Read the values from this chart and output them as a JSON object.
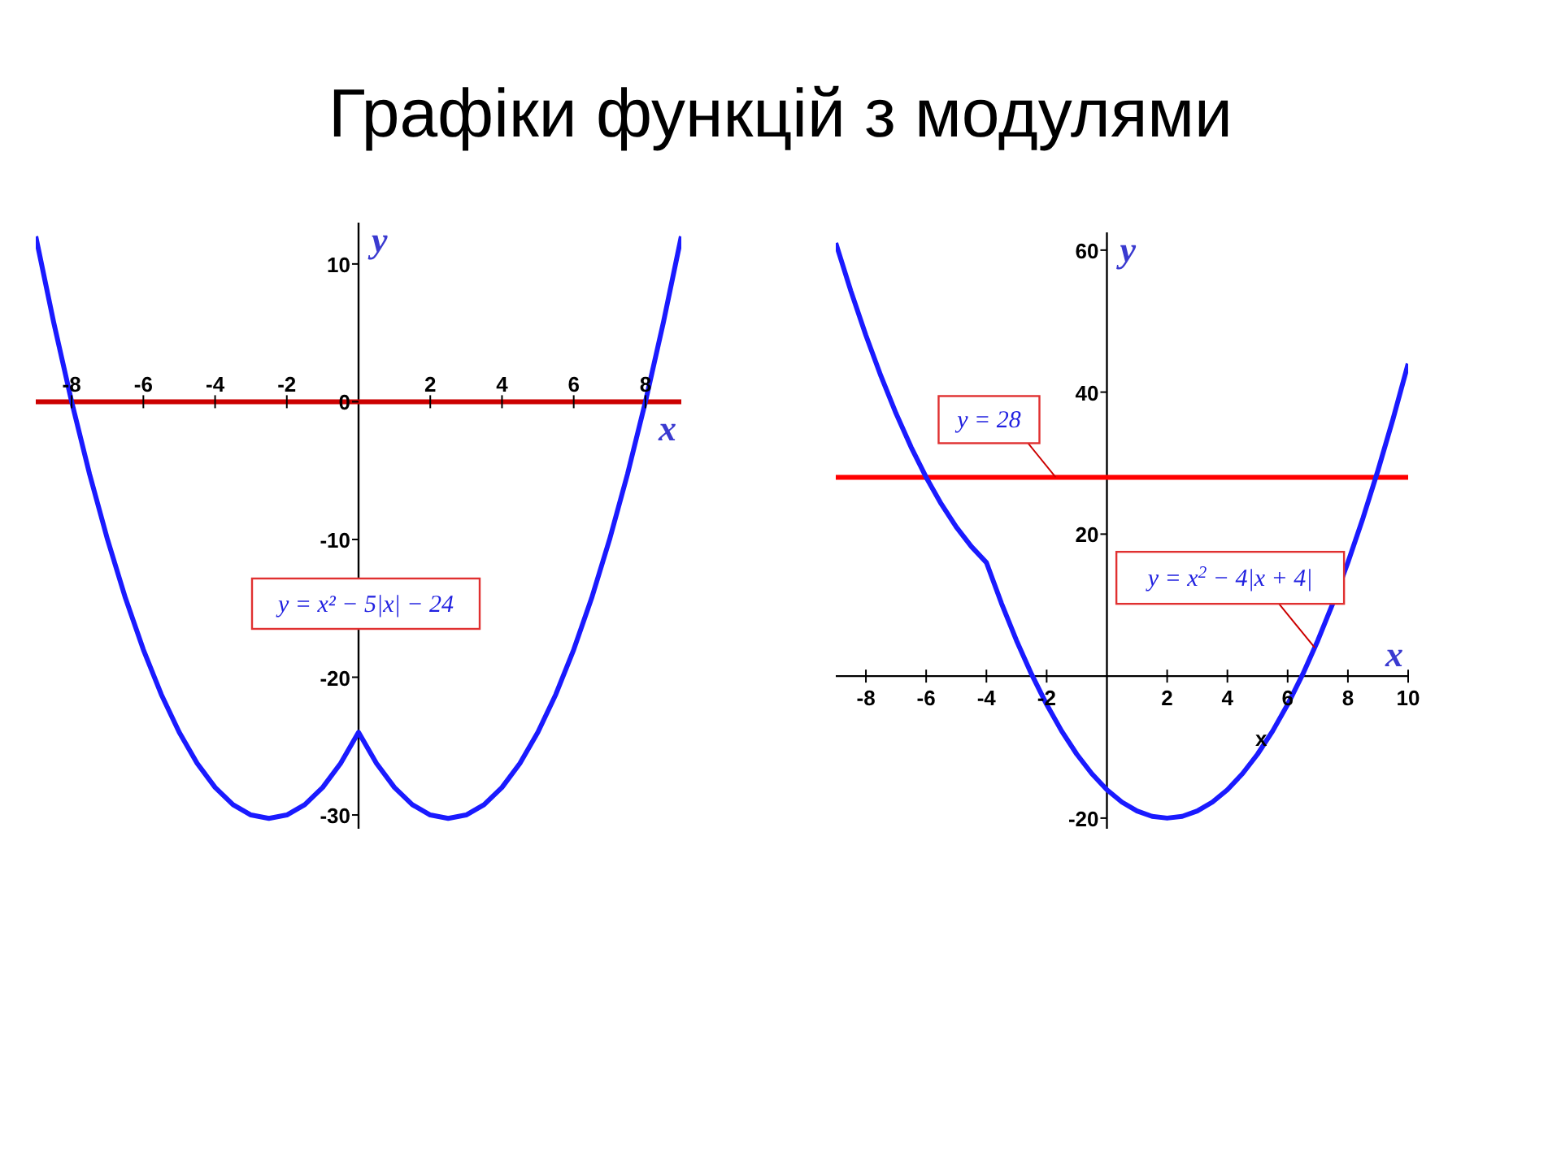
{
  "chart_data": [
    {
      "type": "line",
      "title": "Графіки функцій з модулями",
      "xlabel": "x",
      "ylabel": "y",
      "x": [
        -9,
        -8.5,
        -8,
        -7.5,
        -7,
        -6.5,
        -6,
        -5.5,
        -5,
        -4.5,
        -4,
        -3.5,
        -3,
        -2.5,
        -2,
        -1.5,
        -1,
        -0.5,
        0,
        0.5,
        1,
        1.5,
        2,
        2.5,
        3,
        3.5,
        4,
        4.5,
        5,
        5.5,
        6,
        6.5,
        7,
        7.5,
        8,
        8.5,
        9
      ],
      "series": [
        {
          "type": "line",
          "color": "#cc0000",
          "x": [
            -9,
            9
          ],
          "values": [
            0,
            0
          ]
        },
        {
          "color": "#1a1aff",
          "values": [
            12,
            5.75,
            0,
            -5.25,
            -10,
            -14.25,
            -18,
            -21.25,
            -24,
            -26.25,
            -28,
            -29.25,
            -30,
            -30.25,
            -30,
            -29.25,
            -28,
            -26.25,
            -24,
            -26.25,
            -28,
            -29.25,
            -30,
            -30.25,
            -30,
            -29.25,
            -28,
            -26.25,
            -24,
            -21.25,
            -18,
            -14.25,
            -10,
            -5.25,
            0,
            5.75,
            12
          ]
        }
      ],
      "xlim": [
        -9,
        9
      ],
      "ylim": [
        -31,
        13
      ],
      "xticks": [
        -8,
        -6,
        -4,
        -2,
        2,
        4,
        6,
        8
      ],
      "yticks": [
        10,
        0,
        -10,
        -20,
        -30
      ],
      "annotations": [
        "y = x² − 5|x| − 24"
      ],
      "legend": false,
      "grid": false,
      "marker": "none",
      "line_style": "solid"
    },
    {
      "type": "line",
      "xlabel": "x",
      "ylabel": "y",
      "x": [
        -9,
        -8.5,
        -8,
        -7.5,
        -7,
        -6.5,
        -6,
        -5.5,
        -5,
        -4.5,
        -4,
        -3.5,
        -3,
        -2.5,
        -2,
        -1.5,
        -1,
        -0.5,
        0,
        0.5,
        1,
        1.5,
        2,
        2.5,
        3,
        3.5,
        4,
        4.5,
        5,
        5.5,
        6,
        6.5,
        7,
        7.5,
        8,
        8.5,
        9,
        9.5,
        10
      ],
      "series": [
        {
          "color": "#1a1aff",
          "values": [
            61,
            54.25,
            48,
            42.25,
            37,
            32.25,
            28,
            24.25,
            21,
            18.25,
            16,
            10.25,
            5,
            0.25,
            -4,
            -7.75,
            -11,
            -13.75,
            -16,
            -17.75,
            -19,
            -19.75,
            -20,
            -19.75,
            -19,
            -17.75,
            -16,
            -13.75,
            -11,
            -7.75,
            -4,
            0.25,
            5,
            10.25,
            16,
            22.25,
            29,
            36.25,
            44
          ]
        }
      ],
      "xlim": [
        -9,
        10
      ],
      "ylim": [
        -21.5,
        62.5
      ],
      "xticks": [
        -8,
        -6,
        -4,
        -2,
        2,
        4,
        6,
        8,
        10
      ],
      "yticks": [
        60,
        40,
        20,
        -20
      ],
      "ref_lines": [
        {
          "axis": "y",
          "value": 28,
          "color": "#ff0000"
        }
      ],
      "annotations": [
        {
          "text": "y = 28",
          "x": -1.7,
          "y": 28
        },
        {
          "text": "y = x$^{2}$ − 4|x + 4|",
          "x": 6.9,
          "y": 4
        },
        "x"
      ],
      "legend": false,
      "grid": false,
      "marker": "none",
      "line_style": "solid"
    }
  ]
}
